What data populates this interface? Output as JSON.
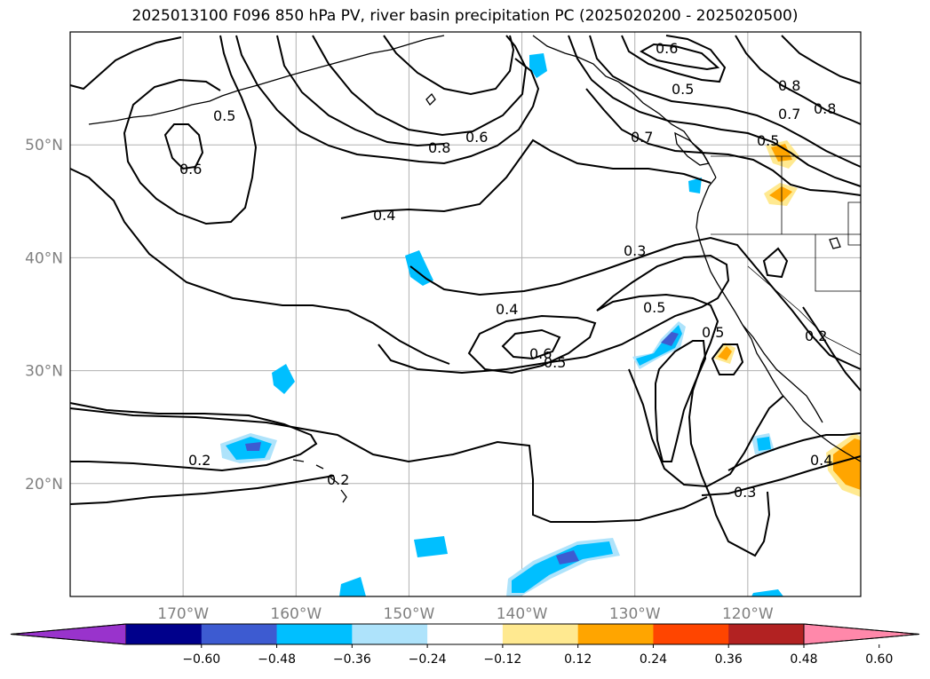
{
  "title": "2025013100 F096 850 hPa PV, river basin precipitation PC (2025020200 - 2025020500)",
  "map": {
    "lon_range": [
      -180,
      -110
    ],
    "lat_range": [
      10,
      60
    ],
    "lon_ticks": [
      {
        "value": -170,
        "label": "170°W"
      },
      {
        "value": -160,
        "label": "160°W"
      },
      {
        "value": -150,
        "label": "150°W"
      },
      {
        "value": -140,
        "label": "140°W"
      },
      {
        "value": -130,
        "label": "130°W"
      },
      {
        "value": -120,
        "label": "120°W"
      }
    ],
    "lat_ticks": [
      {
        "value": 50,
        "label": "50°N"
      },
      {
        "value": 40,
        "label": "40°N"
      },
      {
        "value": 30,
        "label": "30°N"
      },
      {
        "value": 20,
        "label": "20°N"
      }
    ],
    "grid": true,
    "contour_field": "850 hPa PV",
    "contour_labels": [
      "0.5",
      "0.6",
      "0.8",
      "0.6",
      "0.6",
      "0.5",
      "0.8",
      "0.7",
      "0.8",
      "0.7",
      "0.5",
      "0.4",
      "0.3",
      "0.4",
      "0.5",
      "0.6",
      "0.5",
      "0.5",
      "0.2",
      "0.2",
      "0.2",
      "0.4",
      "0.3"
    ],
    "shaded_field": "river basin precipitation PC"
  },
  "colorbar": {
    "ticks": [
      "−0.60",
      "−0.48",
      "−0.36",
      "−0.24",
      "−0.12",
      "0.12",
      "0.24",
      "0.36",
      "0.48",
      "0.60"
    ],
    "colors": [
      "#9933cc",
      "#00008b",
      "#3d5bd1",
      "#00bfff",
      "#aee3fb",
      "#ffffff",
      "#ffe990",
      "#ffa500",
      "#ff4500",
      "#b22222",
      "#ff88aa"
    ],
    "extend": "both"
  }
}
